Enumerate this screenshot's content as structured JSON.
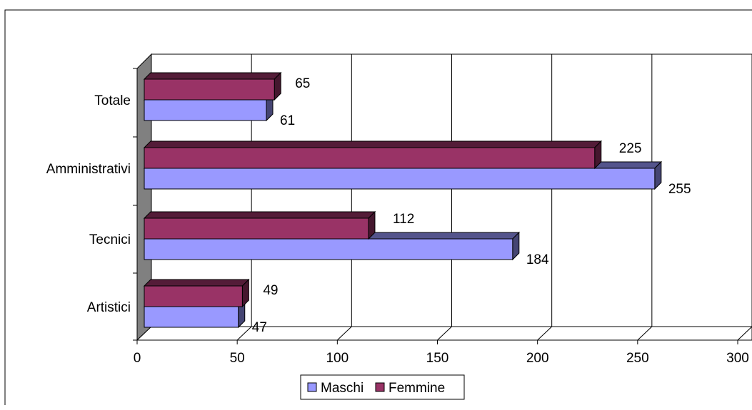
{
  "chart_data": {
    "type": "bar",
    "orientation": "horizontal",
    "categories": [
      "Artistici",
      "Tecnici",
      "Amministrativi",
      "Totale"
    ],
    "series": [
      {
        "name": "Maschi",
        "values": [
          47,
          184,
          255,
          61
        ]
      },
      {
        "name": "Femmine",
        "values": [
          49,
          112,
          225,
          65
        ]
      }
    ],
    "xlim": [
      0,
      300
    ],
    "x_ticks": [
      "0",
      "50",
      "100",
      "150",
      "200",
      "250",
      "300"
    ],
    "grid": true,
    "three_d": true,
    "legend_position": "bottom",
    "colors": {
      "Maschi": "#9999ff",
      "Femmine": "#993366",
      "wall": "#808080",
      "gridline": "#000000"
    }
  }
}
